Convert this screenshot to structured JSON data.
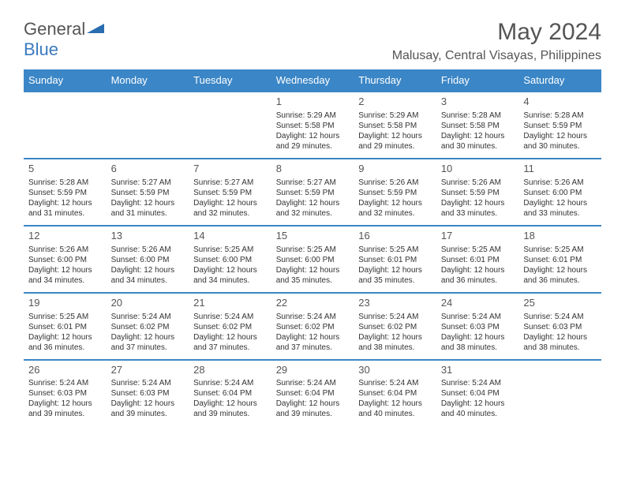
{
  "logo": {
    "text_grey": "General",
    "text_blue": "Blue"
  },
  "title": "May 2024",
  "location": "Malusay, Central Visayas, Philippines",
  "colors": {
    "header_bg": "#3b86c6",
    "row_sep": "#3b86c6",
    "white": "#ffffff",
    "text": "#333333"
  },
  "daynames": [
    "Sunday",
    "Monday",
    "Tuesday",
    "Wednesday",
    "Thursday",
    "Friday",
    "Saturday"
  ],
  "weeks": [
    [
      null,
      null,
      null,
      {
        "d": "1",
        "sr": "5:29 AM",
        "ss": "5:58 PM",
        "dl": "12 hours and 29 minutes."
      },
      {
        "d": "2",
        "sr": "5:29 AM",
        "ss": "5:58 PM",
        "dl": "12 hours and 29 minutes."
      },
      {
        "d": "3",
        "sr": "5:28 AM",
        "ss": "5:58 PM",
        "dl": "12 hours and 30 minutes."
      },
      {
        "d": "4",
        "sr": "5:28 AM",
        "ss": "5:59 PM",
        "dl": "12 hours and 30 minutes."
      }
    ],
    [
      {
        "d": "5",
        "sr": "5:28 AM",
        "ss": "5:59 PM",
        "dl": "12 hours and 31 minutes."
      },
      {
        "d": "6",
        "sr": "5:27 AM",
        "ss": "5:59 PM",
        "dl": "12 hours and 31 minutes."
      },
      {
        "d": "7",
        "sr": "5:27 AM",
        "ss": "5:59 PM",
        "dl": "12 hours and 32 minutes."
      },
      {
        "d": "8",
        "sr": "5:27 AM",
        "ss": "5:59 PM",
        "dl": "12 hours and 32 minutes."
      },
      {
        "d": "9",
        "sr": "5:26 AM",
        "ss": "5:59 PM",
        "dl": "12 hours and 32 minutes."
      },
      {
        "d": "10",
        "sr": "5:26 AM",
        "ss": "5:59 PM",
        "dl": "12 hours and 33 minutes."
      },
      {
        "d": "11",
        "sr": "5:26 AM",
        "ss": "6:00 PM",
        "dl": "12 hours and 33 minutes."
      }
    ],
    [
      {
        "d": "12",
        "sr": "5:26 AM",
        "ss": "6:00 PM",
        "dl": "12 hours and 34 minutes."
      },
      {
        "d": "13",
        "sr": "5:26 AM",
        "ss": "6:00 PM",
        "dl": "12 hours and 34 minutes."
      },
      {
        "d": "14",
        "sr": "5:25 AM",
        "ss": "6:00 PM",
        "dl": "12 hours and 34 minutes."
      },
      {
        "d": "15",
        "sr": "5:25 AM",
        "ss": "6:00 PM",
        "dl": "12 hours and 35 minutes."
      },
      {
        "d": "16",
        "sr": "5:25 AM",
        "ss": "6:01 PM",
        "dl": "12 hours and 35 minutes."
      },
      {
        "d": "17",
        "sr": "5:25 AM",
        "ss": "6:01 PM",
        "dl": "12 hours and 36 minutes."
      },
      {
        "d": "18",
        "sr": "5:25 AM",
        "ss": "6:01 PM",
        "dl": "12 hours and 36 minutes."
      }
    ],
    [
      {
        "d": "19",
        "sr": "5:25 AM",
        "ss": "6:01 PM",
        "dl": "12 hours and 36 minutes."
      },
      {
        "d": "20",
        "sr": "5:24 AM",
        "ss": "6:02 PM",
        "dl": "12 hours and 37 minutes."
      },
      {
        "d": "21",
        "sr": "5:24 AM",
        "ss": "6:02 PM",
        "dl": "12 hours and 37 minutes."
      },
      {
        "d": "22",
        "sr": "5:24 AM",
        "ss": "6:02 PM",
        "dl": "12 hours and 37 minutes."
      },
      {
        "d": "23",
        "sr": "5:24 AM",
        "ss": "6:02 PM",
        "dl": "12 hours and 38 minutes."
      },
      {
        "d": "24",
        "sr": "5:24 AM",
        "ss": "6:03 PM",
        "dl": "12 hours and 38 minutes."
      },
      {
        "d": "25",
        "sr": "5:24 AM",
        "ss": "6:03 PM",
        "dl": "12 hours and 38 minutes."
      }
    ],
    [
      {
        "d": "26",
        "sr": "5:24 AM",
        "ss": "6:03 PM",
        "dl": "12 hours and 39 minutes."
      },
      {
        "d": "27",
        "sr": "5:24 AM",
        "ss": "6:03 PM",
        "dl": "12 hours and 39 minutes."
      },
      {
        "d": "28",
        "sr": "5:24 AM",
        "ss": "6:04 PM",
        "dl": "12 hours and 39 minutes."
      },
      {
        "d": "29",
        "sr": "5:24 AM",
        "ss": "6:04 PM",
        "dl": "12 hours and 39 minutes."
      },
      {
        "d": "30",
        "sr": "5:24 AM",
        "ss": "6:04 PM",
        "dl": "12 hours and 40 minutes."
      },
      {
        "d": "31",
        "sr": "5:24 AM",
        "ss": "6:04 PM",
        "dl": "12 hours and 40 minutes."
      },
      null
    ]
  ],
  "labels": {
    "sunrise": "Sunrise: ",
    "sunset": "Sunset: ",
    "daylight": "Daylight: "
  }
}
